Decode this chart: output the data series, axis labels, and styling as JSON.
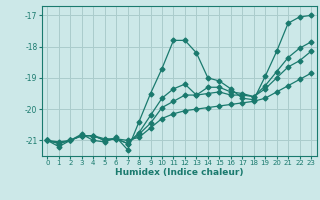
{
  "title": "",
  "xlabel": "Humidex (Indice chaleur)",
  "bg_color": "#cce8e8",
  "grid_color": "#aacccc",
  "line_color": "#1a7a6e",
  "xlim": [
    -0.5,
    23.5
  ],
  "ylim": [
    -21.5,
    -16.7
  ],
  "xticks": [
    0,
    1,
    2,
    3,
    4,
    5,
    6,
    7,
    8,
    9,
    10,
    11,
    12,
    13,
    14,
    15,
    16,
    17,
    18,
    19,
    20,
    21,
    22,
    23
  ],
  "yticks": [
    -21,
    -20,
    -19,
    -18,
    -17
  ],
  "line1_x": [
    0,
    1,
    2,
    3,
    4,
    5,
    6,
    7,
    8,
    9,
    10,
    11,
    12,
    13,
    14,
    15,
    16,
    17,
    18,
    19,
    20,
    21,
    22,
    23
  ],
  "line1_y": [
    -21.0,
    -21.2,
    -21.0,
    -20.8,
    -21.0,
    -21.05,
    -20.9,
    -21.3,
    -20.4,
    -19.5,
    -18.7,
    -17.8,
    -17.8,
    -18.2,
    -19.0,
    -19.1,
    -19.35,
    -19.65,
    -19.7,
    -18.95,
    -18.15,
    -17.25,
    -17.05,
    -17.0
  ],
  "line2_x": [
    0,
    1,
    2,
    3,
    4,
    5,
    6,
    7,
    8,
    9,
    10,
    11,
    12,
    13,
    14,
    15,
    16,
    17,
    18,
    19,
    20,
    21,
    22,
    23
  ],
  "line2_y": [
    -21.0,
    -21.1,
    -21.0,
    -20.85,
    -20.85,
    -21.0,
    -20.95,
    -21.1,
    -20.75,
    -20.2,
    -19.65,
    -19.35,
    -19.2,
    -19.55,
    -19.3,
    -19.3,
    -19.45,
    -19.5,
    -19.6,
    -19.25,
    -18.8,
    -18.35,
    -18.05,
    -17.85
  ],
  "line3_x": [
    0,
    1,
    2,
    3,
    4,
    5,
    6,
    7,
    8,
    9,
    10,
    11,
    12,
    13,
    14,
    15,
    16,
    17,
    18,
    19,
    20,
    21,
    22,
    23
  ],
  "line3_y": [
    -21.0,
    -21.1,
    -21.0,
    -20.85,
    -20.85,
    -21.0,
    -20.95,
    -21.1,
    -20.8,
    -20.45,
    -19.95,
    -19.75,
    -19.55,
    -19.55,
    -19.5,
    -19.45,
    -19.55,
    -19.55,
    -19.6,
    -19.35,
    -19.0,
    -18.65,
    -18.45,
    -18.15
  ],
  "line4_x": [
    0,
    1,
    2,
    3,
    4,
    5,
    6,
    7,
    8,
    9,
    10,
    11,
    12,
    13,
    14,
    15,
    16,
    17,
    18,
    19,
    20,
    21,
    22,
    23
  ],
  "line4_y": [
    -21.0,
    -21.05,
    -21.0,
    -20.85,
    -20.85,
    -20.95,
    -20.95,
    -21.0,
    -20.9,
    -20.6,
    -20.3,
    -20.15,
    -20.05,
    -20.0,
    -19.95,
    -19.9,
    -19.85,
    -19.8,
    -19.75,
    -19.65,
    -19.45,
    -19.25,
    -19.05,
    -18.85
  ]
}
